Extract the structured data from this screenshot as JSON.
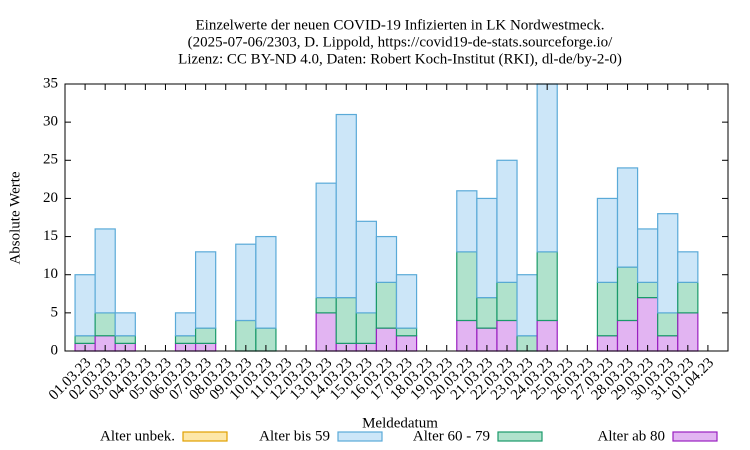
{
  "chart_data": {
    "type": "bar",
    "title": [
      "Einzelwerte der neuen COVID-19 Infizierten in LK Nordwestmeck.",
      "(2025-07-06/2303, D. Lippold, https://covid19-de-stats.sourceforge.io/",
      "Lizenz: CC BY-ND 4.0, Daten: Robert Koch-Institut (RKI), dl-de/by-2-0)"
    ],
    "x_label": "Meldedatum",
    "y_label": "Absolute Werte",
    "stacked": true,
    "categories": [
      "01.03.23",
      "02.03.23",
      "03.03.23",
      "04.03.23",
      "05.03.23",
      "06.03.23",
      "07.03.23",
      "08.03.23",
      "09.03.23",
      "10.03.23",
      "11.03.23",
      "12.03.23",
      "13.03.23",
      "14.03.23",
      "15.03.23",
      "16.03.23",
      "17.03.23",
      "18.03.23",
      "19.03.23",
      "20.03.23",
      "21.03.23",
      "22.03.23",
      "23.03.23",
      "24.03.23",
      "25.03.23",
      "26.03.23",
      "27.03.23",
      "28.03.23",
      "29.03.23",
      "30.03.23",
      "31.03.23",
      "01.04.23"
    ],
    "series": [
      {
        "name": "Alter unbek.",
        "color": "#fde7a8",
        "stroke": "#e0a000",
        "values": [
          0,
          0,
          0,
          0,
          0,
          0,
          0,
          0,
          0,
          0,
          0,
          0,
          0,
          0,
          0,
          0,
          0,
          0,
          0,
          0,
          0,
          0,
          0,
          0,
          0,
          0,
          0,
          0,
          0,
          0,
          0,
          null
        ]
      },
      {
        "name": "Alter bis 59",
        "color": "#cce6f8",
        "stroke": "#5aaad8",
        "values": [
          8,
          11,
          3,
          0,
          0,
          3,
          10,
          0,
          10,
          12,
          0,
          0,
          15,
          24,
          12,
          6,
          7,
          0,
          0,
          8,
          13,
          16,
          8,
          22,
          0,
          0,
          11,
          13,
          7,
          13,
          4,
          null
        ]
      },
      {
        "name": "Alter 60 - 79",
        "color": "#b0e2cc",
        "stroke": "#1a9a6a",
        "values": [
          1,
          3,
          1,
          0,
          0,
          1,
          2,
          0,
          4,
          3,
          0,
          0,
          2,
          6,
          4,
          6,
          1,
          0,
          0,
          9,
          4,
          5,
          2,
          9,
          0,
          0,
          7,
          7,
          2,
          3,
          4,
          null
        ]
      },
      {
        "name": "Alter ab 80",
        "color": "#e2b4f2",
        "stroke": "#9a20c0",
        "values": [
          1,
          2,
          1,
          0,
          0,
          1,
          1,
          0,
          0,
          0,
          0,
          0,
          5,
          1,
          1,
          3,
          2,
          0,
          0,
          4,
          3,
          4,
          0,
          4,
          0,
          0,
          2,
          4,
          7,
          2,
          5,
          null
        ]
      }
    ],
    "ylim": [
      0,
      35
    ],
    "yticks": [
      0,
      5,
      10,
      15,
      20,
      25,
      30,
      35
    ]
  }
}
